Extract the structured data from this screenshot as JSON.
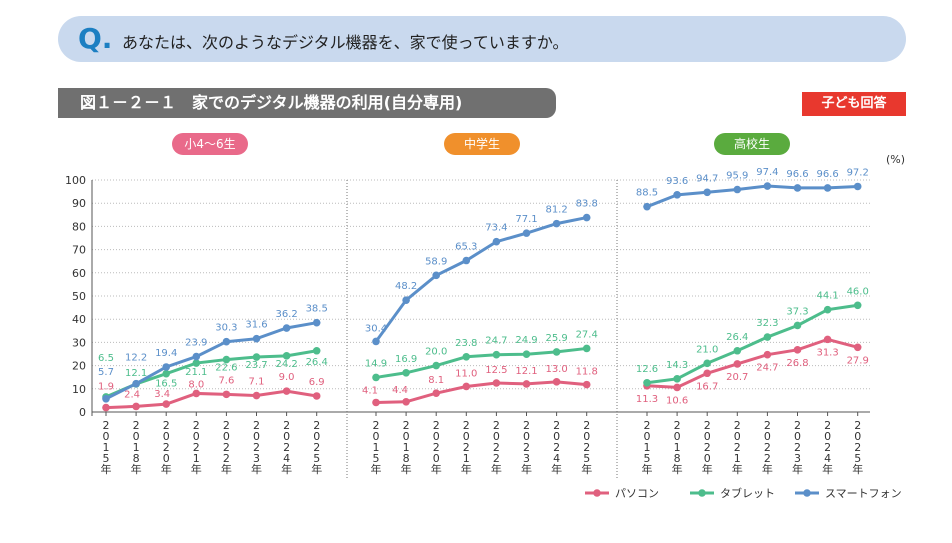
{
  "question": {
    "mark": "Q.",
    "text": "あなたは、次のようなデジタル機器を、家で使っていますか。"
  },
  "figure_title": "図１－２－１　家でのデジタル機器の利用(自分専用)",
  "badge": "子ども回答",
  "chart_data": {
    "type": "line",
    "unit": "(%)",
    "ylim": [
      0,
      100
    ],
    "yticks": [
      0,
      10,
      20,
      30,
      40,
      50,
      60,
      70,
      80,
      90,
      100
    ],
    "grid": true,
    "legend_position": "bottom-right",
    "categories": [
      "2015年",
      "2018年",
      "2020年",
      "2021年",
      "2022年",
      "2023年",
      "2024年",
      "2025年"
    ],
    "colors": {
      "pc": "#e0607e",
      "tablet": "#4dbd8c",
      "smartphone": "#5b8fc9"
    },
    "legend": [
      {
        "key": "pc",
        "name": "パソコン"
      },
      {
        "key": "tablet",
        "name": "タブレット"
      },
      {
        "key": "smartphone",
        "name": "スマートフォン"
      }
    ],
    "panels": [
      {
        "label": "小4～6生",
        "color": "#e96a8a",
        "series": {
          "pc": [
            1.9,
            2.4,
            3.4,
            8.0,
            7.6,
            7.1,
            9.0,
            6.9
          ],
          "tablet": [
            6.5,
            12.1,
            16.5,
            21.1,
            22.6,
            23.7,
            24.2,
            26.4
          ],
          "smartphone": [
            5.7,
            12.2,
            19.4,
            23.9,
            30.3,
            31.6,
            36.2,
            38.5
          ]
        }
      },
      {
        "label": "中学生",
        "color": "#f0902c",
        "series": {
          "pc": [
            4.1,
            4.4,
            8.1,
            11.0,
            12.5,
            12.1,
            13.0,
            11.8
          ],
          "tablet": [
            14.9,
            16.9,
            20.0,
            23.8,
            24.7,
            24.9,
            25.9,
            27.4
          ],
          "smartphone": [
            30.4,
            48.2,
            58.9,
            65.3,
            73.4,
            77.1,
            81.2,
            83.8
          ]
        }
      },
      {
        "label": "高校生",
        "color": "#5aab3e",
        "series": {
          "pc": [
            11.3,
            10.6,
            16.7,
            20.7,
            24.7,
            26.8,
            31.3,
            27.9
          ],
          "tablet": [
            12.6,
            14.3,
            21.0,
            26.4,
            32.3,
            37.3,
            44.1,
            46.0
          ],
          "smartphone": [
            88.5,
            93.6,
            94.7,
            95.9,
            97.4,
            96.6,
            96.6,
            97.2
          ]
        }
      }
    ]
  }
}
